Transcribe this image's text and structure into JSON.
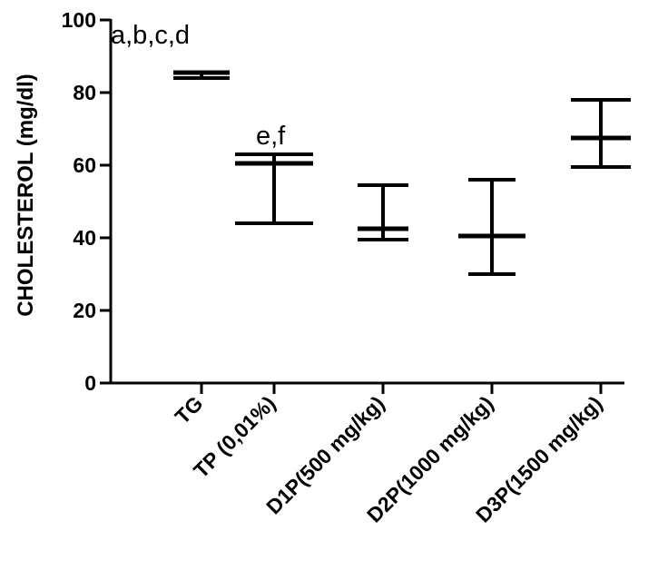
{
  "chart_data": {
    "type": "scatter",
    "title": "",
    "xlabel": "",
    "ylabel": "CHOLESTEROL (mg/dl)",
    "ylim": [
      0,
      100
    ],
    "yticks": [
      "0",
      "20",
      "40",
      "60",
      "80",
      "100"
    ],
    "grid": false,
    "categories": [
      "TG",
      "TP (0,01%)",
      "D1P(500 mg/kg)",
      "D2P(1000 mg/kg)",
      "D3P(1500 mg/kg)"
    ],
    "series": [
      {
        "mean": [
          85.5,
          60.5,
          42.5,
          40.5,
          67.5
        ],
        "error_low": [
          84.0,
          44.0,
          39.5,
          30.0,
          59.5
        ],
        "error_high": [
          85.5,
          63.0,
          54.5,
          56.0,
          78.0
        ]
      }
    ],
    "annotations": [
      {
        "category": "TG",
        "text": "a,b,c,d"
      },
      {
        "category": "TP (0,01%)",
        "text": "e,f"
      }
    ]
  }
}
